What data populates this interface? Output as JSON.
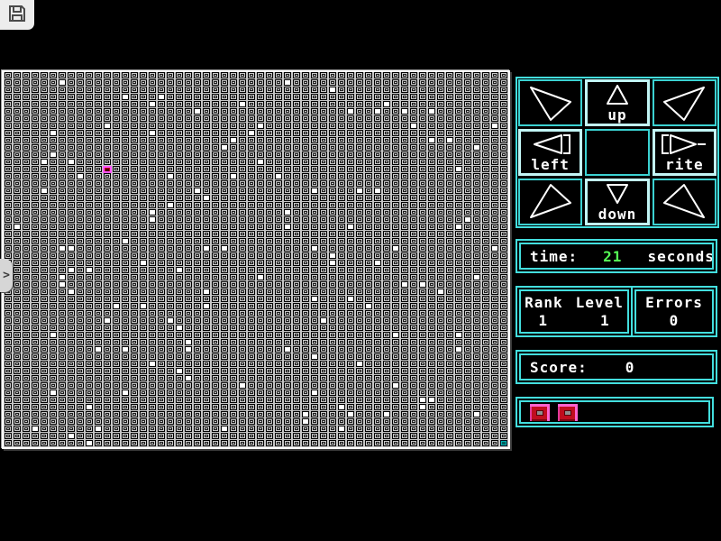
{
  "app": {
    "background": "#000000"
  },
  "toolbar": {
    "save_icon": "floppy-disk"
  },
  "side_tab": {
    "chevron": ">"
  },
  "board": {
    "cols": 56,
    "rows": 52,
    "cell": {
      "width": 10,
      "height": 8
    },
    "colors": {
      "base": "#c6c6c6",
      "line": "#000000",
      "white": "#ffffff",
      "player_face": "#b80818",
      "player_border": "#ff55ff",
      "goal": "#00b2b2"
    },
    "white_cells": [
      [
        6,
        1
      ],
      [
        17,
        3
      ],
      [
        13,
        3
      ],
      [
        16,
        4
      ],
      [
        26,
        4
      ],
      [
        21,
        5
      ],
      [
        11,
        7
      ],
      [
        5,
        8
      ],
      [
        16,
        8
      ],
      [
        27,
        8
      ],
      [
        25,
        9
      ],
      [
        24,
        10
      ],
      [
        5,
        11
      ],
      [
        4,
        12
      ],
      [
        7,
        12
      ],
      [
        28,
        12
      ],
      [
        8,
        14
      ],
      [
        18,
        14
      ],
      [
        25,
        14
      ],
      [
        4,
        16
      ],
      [
        21,
        16
      ],
      [
        22,
        17
      ],
      [
        18,
        18
      ],
      [
        16,
        19
      ],
      [
        16,
        20
      ],
      [
        1,
        21
      ],
      [
        13,
        23
      ],
      [
        6,
        24
      ],
      [
        7,
        24
      ],
      [
        22,
        24
      ],
      [
        24,
        24
      ],
      [
        31,
        1
      ],
      [
        36,
        2
      ],
      [
        42,
        4
      ],
      [
        38,
        5
      ],
      [
        41,
        5
      ],
      [
        44,
        5
      ],
      [
        47,
        5
      ],
      [
        28,
        7
      ],
      [
        45,
        7
      ],
      [
        54,
        7
      ],
      [
        47,
        9
      ],
      [
        49,
        9
      ],
      [
        52,
        10
      ],
      [
        50,
        13
      ],
      [
        30,
        14
      ],
      [
        34,
        16
      ],
      [
        39,
        16
      ],
      [
        41,
        16
      ],
      [
        31,
        19
      ],
      [
        51,
        20
      ],
      [
        31,
        21
      ],
      [
        38,
        21
      ],
      [
        50,
        21
      ],
      [
        34,
        24
      ],
      [
        43,
        24
      ],
      [
        54,
        24
      ],
      [
        36,
        25
      ],
      [
        15,
        26
      ],
      [
        7,
        27
      ],
      [
        9,
        27
      ],
      [
        19,
        27
      ],
      [
        6,
        28
      ],
      [
        28,
        28
      ],
      [
        6,
        29
      ],
      [
        7,
        30
      ],
      [
        22,
        30
      ],
      [
        12,
        32
      ],
      [
        15,
        32
      ],
      [
        22,
        32
      ],
      [
        11,
        34
      ],
      [
        18,
        34
      ],
      [
        19,
        35
      ],
      [
        5,
        36
      ],
      [
        20,
        37
      ],
      [
        10,
        38
      ],
      [
        13,
        38
      ],
      [
        20,
        38
      ],
      [
        16,
        40
      ],
      [
        19,
        41
      ],
      [
        20,
        42
      ],
      [
        26,
        43
      ],
      [
        5,
        44
      ],
      [
        13,
        44
      ],
      [
        9,
        46
      ],
      [
        3,
        49
      ],
      [
        10,
        49
      ],
      [
        24,
        49
      ],
      [
        7,
        50
      ],
      [
        9,
        51
      ],
      [
        36,
        26
      ],
      [
        41,
        26
      ],
      [
        52,
        28
      ],
      [
        44,
        29
      ],
      [
        46,
        29
      ],
      [
        48,
        30
      ],
      [
        34,
        31
      ],
      [
        38,
        31
      ],
      [
        40,
        32
      ],
      [
        35,
        34
      ],
      [
        43,
        36
      ],
      [
        50,
        36
      ],
      [
        31,
        38
      ],
      [
        50,
        38
      ],
      [
        34,
        39
      ],
      [
        39,
        40
      ],
      [
        43,
        43
      ],
      [
        34,
        44
      ],
      [
        46,
        45
      ],
      [
        47,
        45
      ],
      [
        37,
        46
      ],
      [
        46,
        46
      ],
      [
        33,
        47
      ],
      [
        38,
        47
      ],
      [
        42,
        47
      ],
      [
        52,
        47
      ],
      [
        33,
        48
      ],
      [
        37,
        49
      ]
    ],
    "player_cell": [
      11,
      13
    ],
    "goal_cell": [
      55,
      51
    ]
  },
  "dpad": {
    "labels": {
      "up": "up",
      "left": "left",
      "rite": "rite",
      "down": "down"
    },
    "highlighted": [
      "up",
      "left",
      "rite",
      "down"
    ],
    "border_color": "#3bd2d2",
    "highlight_border_color": "#c2f6f6"
  },
  "time_panel": {
    "label": "time:",
    "value": "21",
    "unit": "seconds",
    "value_color": "#55ff55"
  },
  "stats_panel": {
    "rank_label": "Rank",
    "level_label": "Level",
    "rank_value": "1",
    "level_value": "1",
    "errors_label": "Errors",
    "errors_value": "0"
  },
  "score_panel": {
    "label": "Score:",
    "value": "0"
  },
  "buttons_panel": {
    "buttons": [
      "red-button-1",
      "red-button-2"
    ]
  },
  "colors": {
    "panel_cyan": "#43dede",
    "text_white": "#ffffff",
    "green": "#55ff55"
  }
}
